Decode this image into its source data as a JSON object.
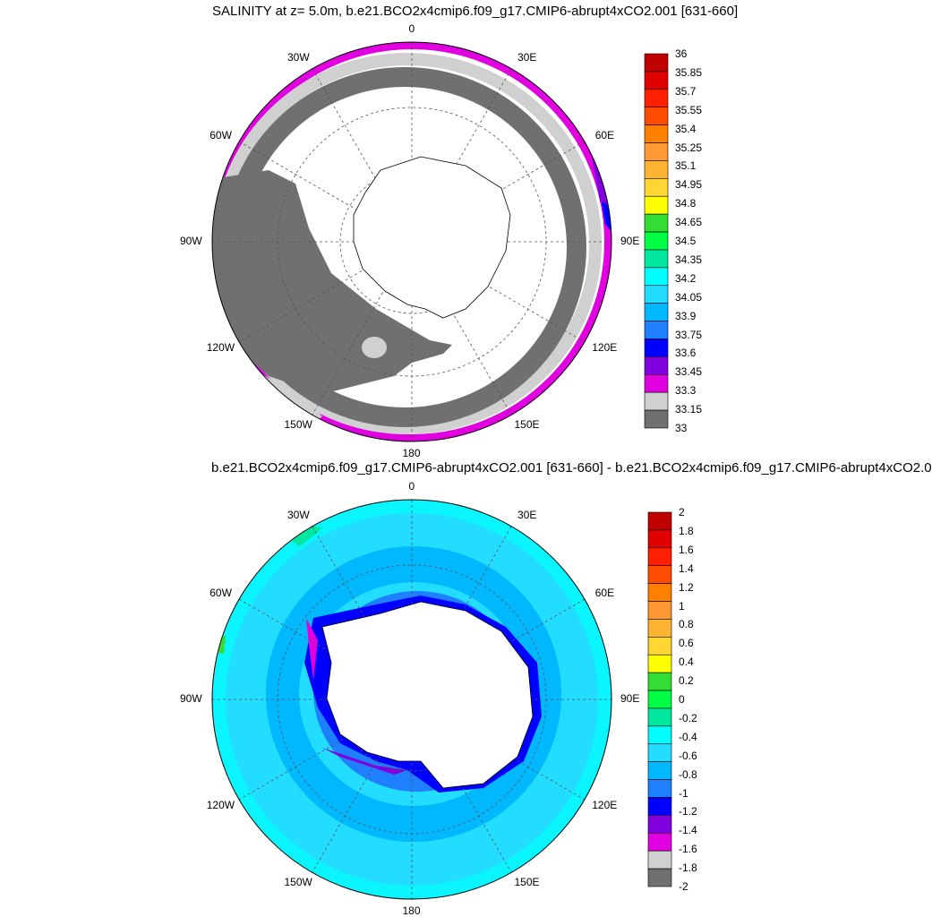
{
  "panels": [
    {
      "title": "SALINITY at z=   5.0m, b.e21.BCO2x4cmip6.f09_g17.CMIP6-abrupt4xCO2.001 [631-660]",
      "lon_labels": [
        "0",
        "30E",
        "60E",
        "90E",
        "120E",
        "150E",
        "180",
        "150W",
        "120W",
        "90W",
        "60W",
        "30W"
      ],
      "colorbar_labels": [
        "36",
        "35.85",
        "35.7",
        "35.55",
        "35.4",
        "35.25",
        "35.1",
        "34.95",
        "34.8",
        "34.65",
        "34.5",
        "34.35",
        "34.2",
        "34.05",
        "33.9",
        "33.75",
        "33.6",
        "33.45",
        "33.3",
        "33.15",
        "33"
      ],
      "colorbar_colors": [
        "#c00000",
        "#e00000",
        "#ff2000",
        "#ff4d00",
        "#ff8000",
        "#ff9933",
        "#ffb333",
        "#ffd633",
        "#ffff00",
        "#33dd33",
        "#00ff44",
        "#00e8a0",
        "#00ffff",
        "#22ddff",
        "#00b8ff",
        "#1e80ff",
        "#0000ff",
        "#8000e0",
        "#e000e0",
        "#d0d0d0",
        "#707070"
      ]
    },
    {
      "title": "b.e21.BCO2x4cmip6.f09_g17.CMIP6-abrupt4xCO2.001 [631-660] - b.e21.BCO2x4cmip6.f09_g17.CMIP6-abrupt4xCO2.0",
      "lon_labels": [
        "0",
        "30E",
        "60E",
        "90E",
        "120E",
        "150E",
        "180",
        "150W",
        "120W",
        "90W",
        "60W",
        "30W"
      ],
      "colorbar_labels": [
        "2",
        "1.8",
        "1.6",
        "1.4",
        "1.2",
        "1",
        "0.8",
        "0.6",
        "0.4",
        "0.2",
        "0",
        "-0.2",
        "-0.4",
        "-0.6",
        "-0.8",
        "-1",
        "-1.2",
        "-1.4",
        "-1.6",
        "-1.8",
        "-2"
      ],
      "colorbar_colors": [
        "#c00000",
        "#e00000",
        "#ff2000",
        "#ff4d00",
        "#ff8000",
        "#ff9933",
        "#ffb333",
        "#ffd633",
        "#ffff00",
        "#33dd33",
        "#00ff44",
        "#00e8a0",
        "#00ffff",
        "#22ddff",
        "#00b8ff",
        "#1e80ff",
        "#0000ff",
        "#8000e0",
        "#e000e0",
        "#d0d0d0",
        "#707070"
      ]
    }
  ]
}
